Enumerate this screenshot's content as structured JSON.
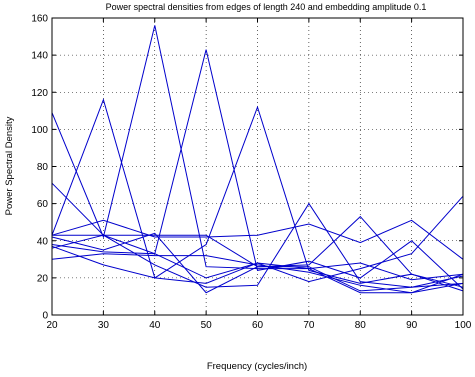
{
  "chart_data": {
    "type": "line",
    "title": "Power spectral densities from edges of length 240 and embedding amplitude 0.1",
    "xlabel": "Frequency (cycles/inch)",
    "ylabel": "Power Spectral Density",
    "xlim": [
      20,
      100
    ],
    "ylim": [
      0,
      160
    ],
    "xticks": [
      20,
      30,
      40,
      50,
      60,
      70,
      80,
      90,
      100
    ],
    "yticks": [
      0,
      20,
      40,
      60,
      80,
      100,
      120,
      140,
      160
    ],
    "grid": true,
    "line_color": "#0000cc",
    "x": [
      20,
      30,
      40,
      50,
      60,
      70,
      80,
      90,
      100
    ],
    "series": [
      {
        "values": [
          109,
          42,
          156,
          26,
          25,
          25,
          28,
          19,
          22
        ]
      },
      {
        "values": [
          71,
          43,
          33,
          143,
          24,
          29,
          20,
          40,
          14
        ]
      },
      {
        "values": [
          43,
          116,
          20,
          38,
          112,
          24,
          17,
          22,
          13
        ]
      },
      {
        "values": [
          43,
          43,
          43,
          43,
          26,
          27,
          53,
          22,
          15
        ]
      },
      {
        "values": [
          43,
          51,
          42,
          42,
          43,
          49,
          39,
          51,
          30
        ]
      },
      {
        "values": [
          36,
          43,
          27,
          15,
          16,
          60,
          18,
          15,
          17
        ]
      },
      {
        "values": [
          37,
          27,
          20,
          17,
          28,
          18,
          25,
          33,
          64
        ]
      },
      {
        "values": [
          30,
          33,
          32,
          32,
          27,
          23,
          16,
          12,
          17
        ]
      },
      {
        "values": [
          42,
          35,
          44,
          12,
          26,
          26,
          13,
          15,
          21
        ]
      },
      {
        "values": [
          38,
          34,
          33,
          20,
          28,
          25,
          12,
          12,
          22
        ]
      }
    ]
  }
}
